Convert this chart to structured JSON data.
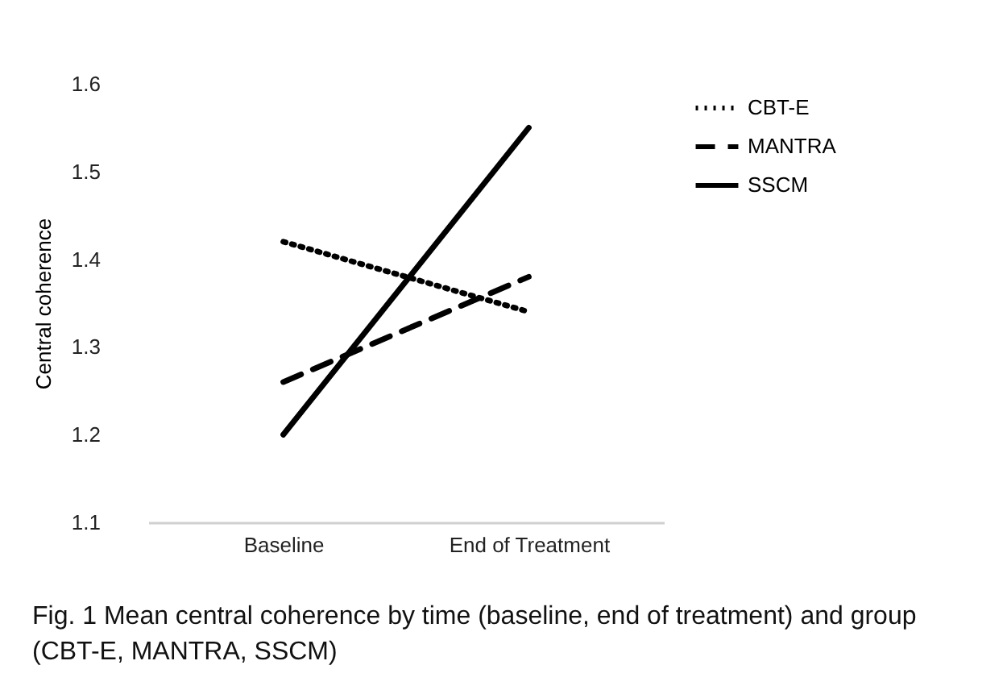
{
  "chart_data": {
    "type": "line",
    "ylabel": "Central coherence",
    "categories": [
      "Baseline",
      "End of Treatment"
    ],
    "series": [
      {
        "name": "CBT-E",
        "color": "#000000",
        "line_style": "dotted",
        "values": [
          1.42,
          1.34
        ]
      },
      {
        "name": "MANTRA",
        "color": "#000000",
        "line_style": "dashed",
        "values": [
          1.26,
          1.38
        ]
      },
      {
        "name": "SSCM",
        "color": "#000000",
        "line_style": "solid",
        "values": [
          1.2,
          1.55
        ]
      }
    ],
    "ylim": [
      1.1,
      1.6
    ],
    "yticks": [
      1.1,
      1.2,
      1.3,
      1.4,
      1.5,
      1.6
    ],
    "grid": false,
    "legend": "right",
    "marker": "none",
    "annotations": [
      "Fig. 1  Mean central coherence by time (baseline, end of treatment) and group (CBT-E, MANTRA, SSCM)"
    ]
  }
}
